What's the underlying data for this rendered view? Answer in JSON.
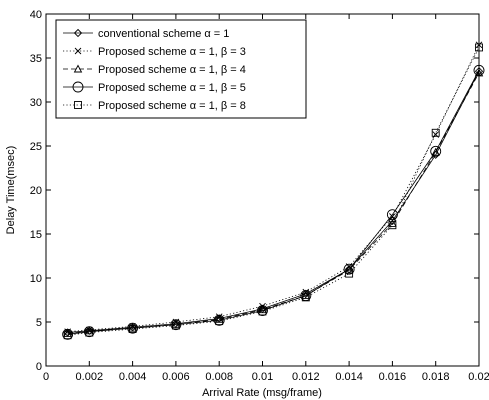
{
  "chart_data": {
    "type": "line",
    "xlabel": "Arrival Rate (msg/frame)",
    "ylabel": "Delay Time(msec)",
    "xlim": [
      0,
      0.02
    ],
    "ylim": [
      0,
      40
    ],
    "x_ticks": [
      0,
      0.002,
      0.004,
      0.006,
      0.008,
      0.01,
      0.012,
      0.014,
      0.016,
      0.018,
      0.02
    ],
    "x_tick_labels": [
      "0",
      "0.002",
      "0.004",
      "0.006",
      "0.008",
      "0.01",
      "0.012",
      "0.014",
      "0.016",
      "0.018",
      "0.02"
    ],
    "y_ticks": [
      0,
      5,
      10,
      15,
      20,
      25,
      30,
      35,
      40
    ],
    "y_tick_labels": [
      "0",
      "5",
      "10",
      "15",
      "20",
      "25",
      "30",
      "35",
      "40"
    ],
    "grid": false,
    "legend_position": "top-left",
    "x": [
      0.001,
      0.002,
      0.004,
      0.006,
      0.008,
      0.01,
      0.012,
      0.014,
      0.016,
      0.018,
      0.02
    ],
    "series": [
      {
        "name": "conventional scheme α = 1",
        "marker": "diamond",
        "dash": "",
        "values": [
          3.8,
          4.0,
          4.4,
          4.8,
          5.4,
          6.5,
          8.2,
          11.0,
          16.5,
          24.0,
          33.5
        ]
      },
      {
        "name": "Proposed scheme  α = 1, β = 3",
        "marker": "x",
        "dash": "1.2 2.2",
        "values": [
          3.9,
          4.1,
          4.5,
          5.0,
          5.6,
          6.8,
          8.4,
          11.3,
          17.0,
          26.3,
          36.5
        ]
      },
      {
        "name": "Proposed scheme  α = 1, β = 4",
        "marker": "triangle",
        "dash": "5 3",
        "values": [
          3.7,
          4.0,
          4.3,
          4.7,
          5.3,
          6.4,
          8.0,
          10.9,
          16.2,
          24.3,
          33.3
        ]
      },
      {
        "name": "Proposed scheme  α = 1, β = 5",
        "marker": "circle",
        "dash": "",
        "values": [
          3.6,
          3.9,
          4.3,
          4.7,
          5.2,
          6.3,
          8.0,
          11.0,
          17.2,
          24.4,
          33.6
        ]
      },
      {
        "name": "Proposed scheme  α = 1, β = 8",
        "marker": "square",
        "dash": "1.2 2.2",
        "values": [
          3.5,
          3.8,
          4.2,
          4.6,
          5.1,
          6.2,
          7.8,
          10.5,
          16.0,
          26.5,
          36.2
        ]
      }
    ]
  }
}
